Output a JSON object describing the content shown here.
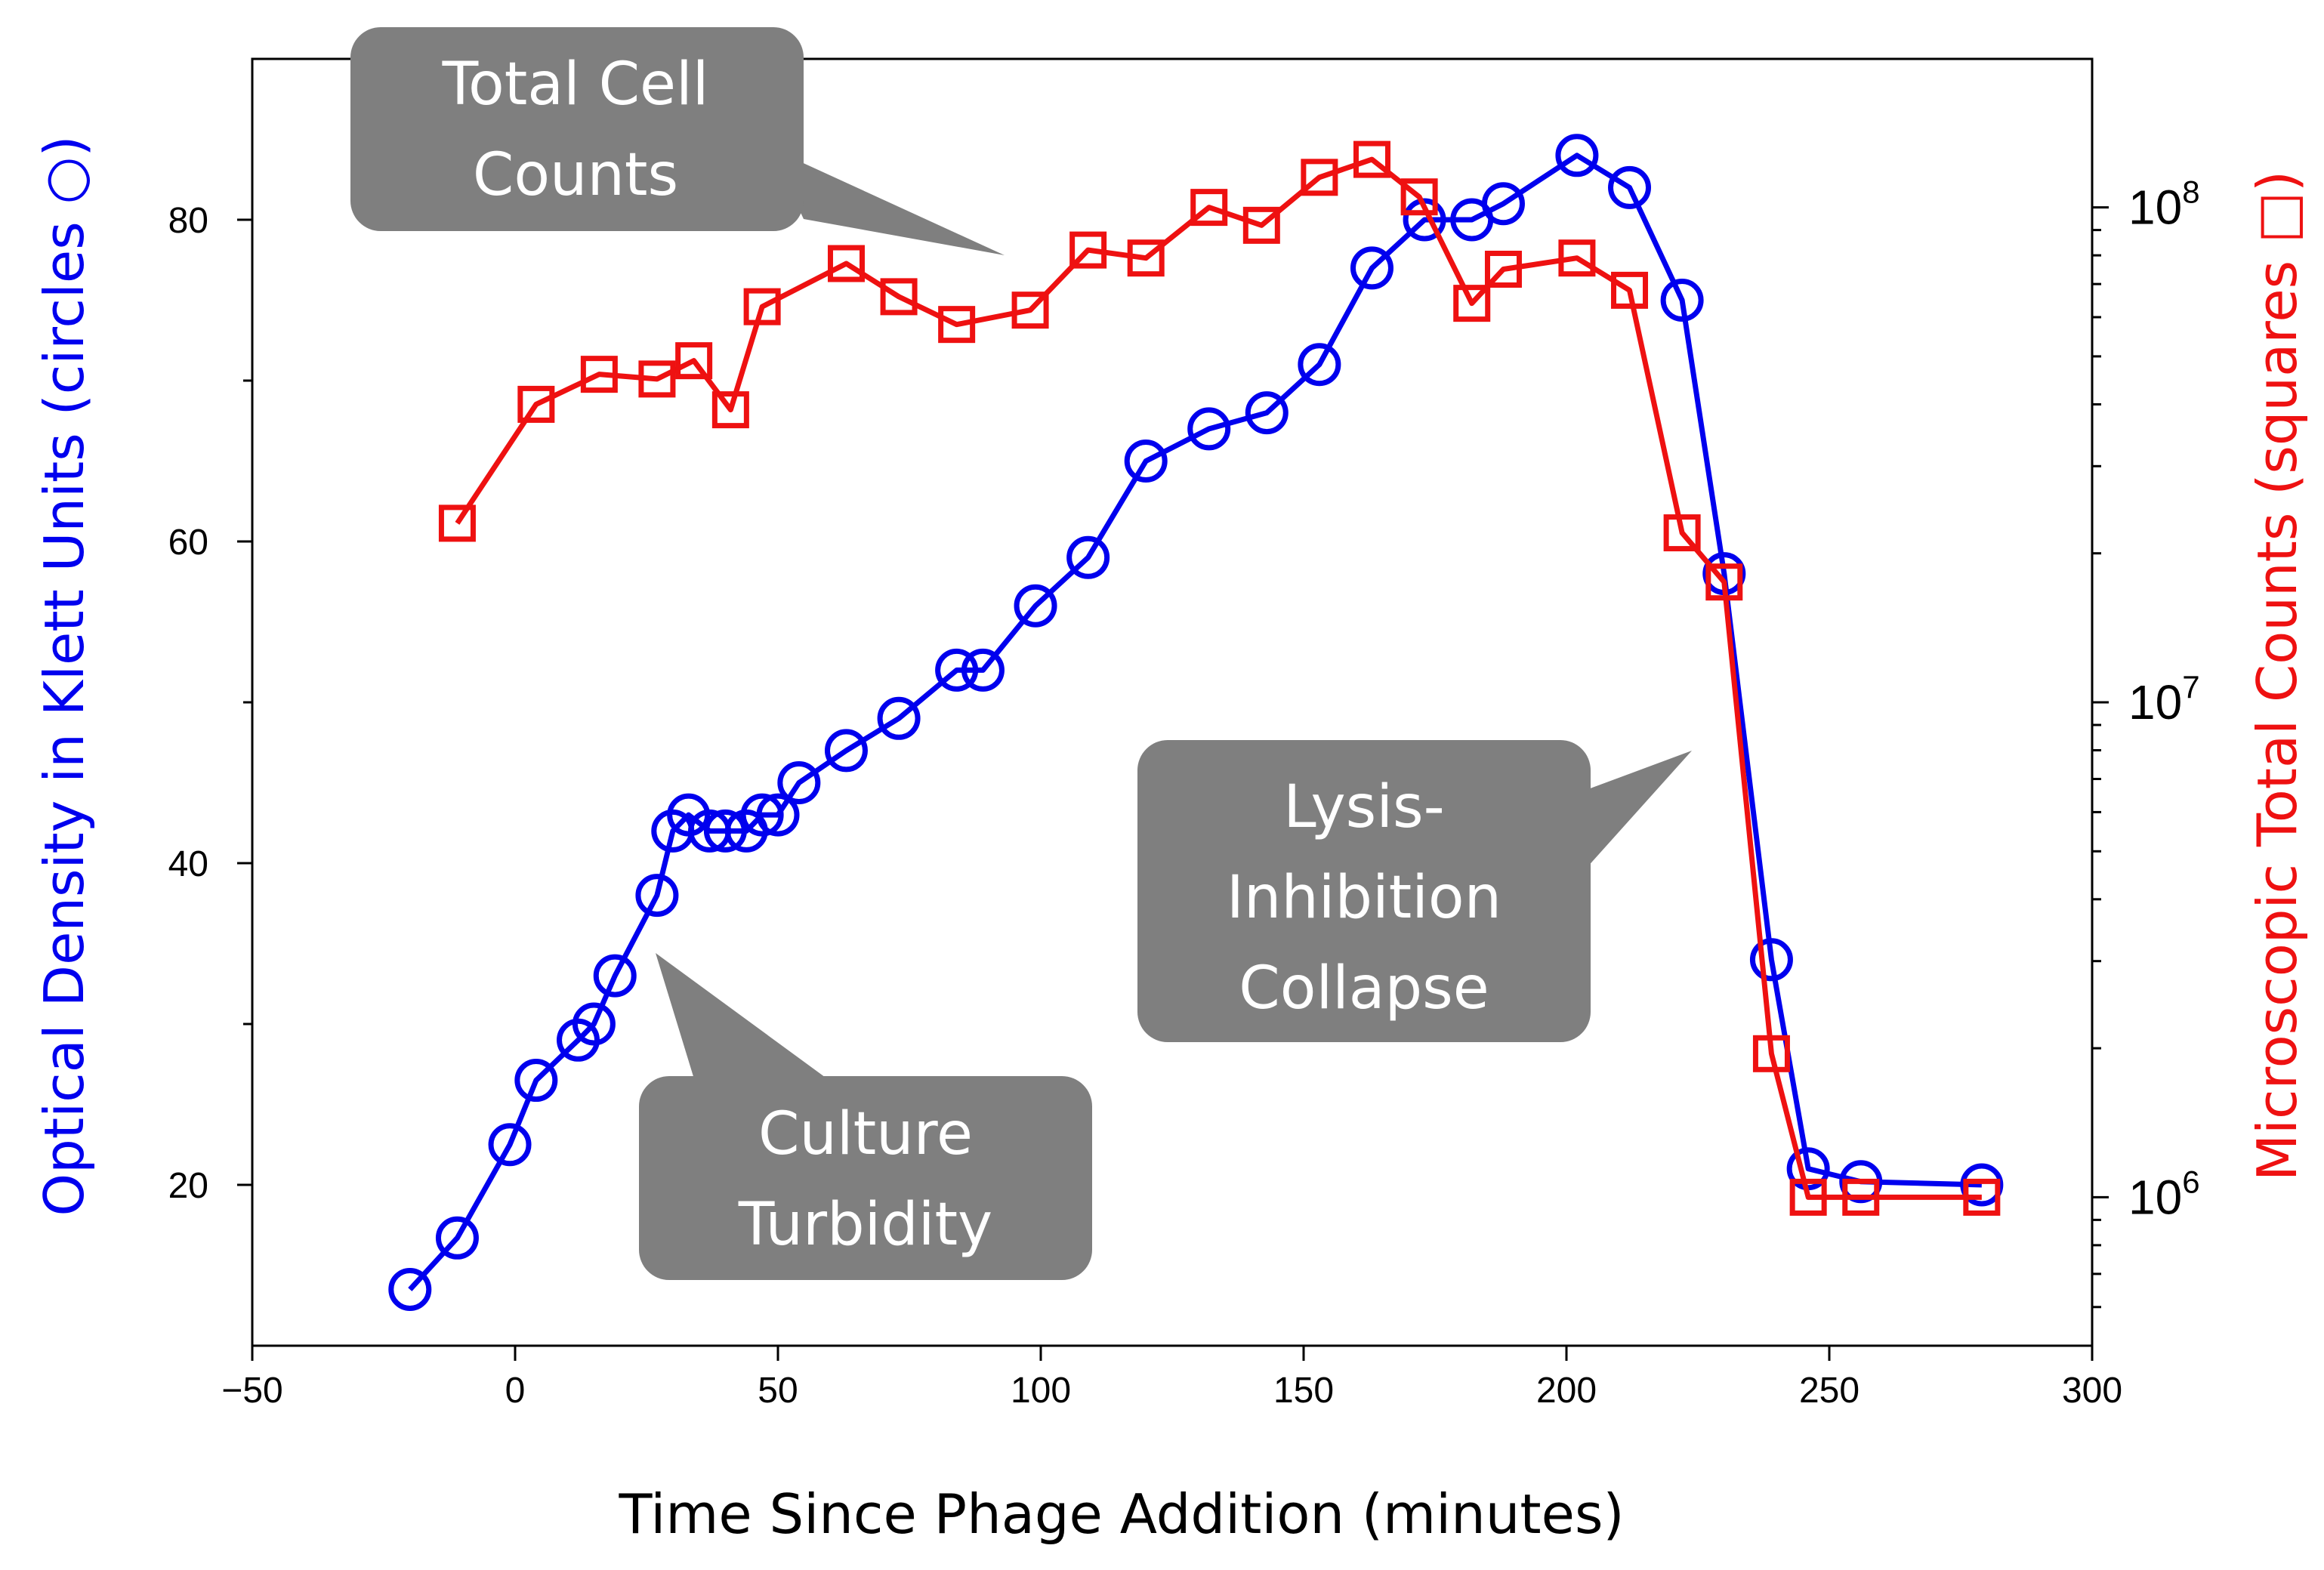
{
  "chart_data": {
    "type": "line",
    "title": "",
    "xlabel": "Time Since Phage Addition (minutes)",
    "ylabel": "Optical Density in Klett Units (circles ○)",
    "y2label": "Microscopic Total Counts (squares □)",
    "xlim": [
      -50,
      300
    ],
    "ylim": [
      10,
      90
    ],
    "y2lim_log10": [
      5.7,
      8.3
    ],
    "x_ticks": [
      -50,
      0,
      50,
      100,
      150,
      200,
      250,
      300
    ],
    "x_tick_labels": [
      "−50",
      "0",
      "50",
      "100",
      "150",
      "200",
      "250",
      "300"
    ],
    "y_ticks": [
      20,
      40,
      60,
      80
    ],
    "y_tick_labels": [
      "20",
      "40",
      "60",
      "80"
    ],
    "y2_ticks": [
      {
        "base": "10",
        "exp": "6",
        "value": 1000000
      },
      {
        "base": "10",
        "exp": "7",
        "value": 10000000
      },
      {
        "base": "10",
        "exp": "8",
        "value": 100000000
      }
    ],
    "series": [
      {
        "name": "Optical Density (Klett Units)",
        "axis": "left",
        "color": "#0000ee",
        "marker": "circle",
        "x": [
          -20,
          -11,
          -1,
          4,
          12,
          15,
          19,
          27,
          30,
          33,
          37,
          40,
          44,
          47,
          50,
          54,
          63,
          73,
          84,
          89,
          99,
          109,
          120,
          132,
          143,
          153,
          163,
          173,
          182,
          188,
          202,
          212,
          222,
          230,
          239,
          246,
          256,
          279
        ],
        "values": [
          13.5,
          16.7,
          22.5,
          26.5,
          29,
          30,
          33,
          38,
          42,
          43,
          42,
          42,
          42,
          43,
          43,
          45,
          47,
          49,
          52,
          52,
          56,
          59,
          65,
          67,
          68,
          71,
          77,
          80,
          80,
          81,
          84,
          82,
          75,
          58,
          34,
          21,
          20.2,
          20
        ]
      },
      {
        "name": "Microscopic Total Counts",
        "axis": "right",
        "color": "#ee1111",
        "marker": "square",
        "x": [
          -11,
          4,
          16,
          27,
          34,
          41,
          47,
          63,
          73,
          84,
          98,
          109,
          120,
          132,
          142,
          153,
          163,
          172,
          182,
          188,
          202,
          212,
          222,
          230,
          239,
          246,
          256,
          279
        ],
        "values": [
          23000000,
          40000000,
          46000000,
          45000000,
          49000000,
          39000000,
          63000000,
          77000000,
          66000000,
          58000000,
          62000000,
          82000000,
          79000000,
          100000000,
          92000000,
          115000000,
          125000000,
          105000000,
          64000000,
          75000000,
          79000000,
          68000000,
          22000000,
          17500000,
          1950000,
          1000000,
          1000000,
          1000000
        ]
      }
    ],
    "annotations": [
      {
        "lines": [
          "Total Cell",
          "Counts"
        ],
        "points_to": "red series"
      },
      {
        "lines": [
          "Lysis-",
          "Inhibition",
          "Collapse"
        ],
        "points_to": "curve drop"
      },
      {
        "lines": [
          "Culture",
          "Turbidity"
        ],
        "points_to": "blue series"
      }
    ],
    "legend": "none",
    "grid": false
  },
  "colors": {
    "od_series": "#0000ee",
    "count_series": "#ee1111",
    "callout_fill": "#7f7f7f",
    "callout_text": "#ffffff"
  }
}
